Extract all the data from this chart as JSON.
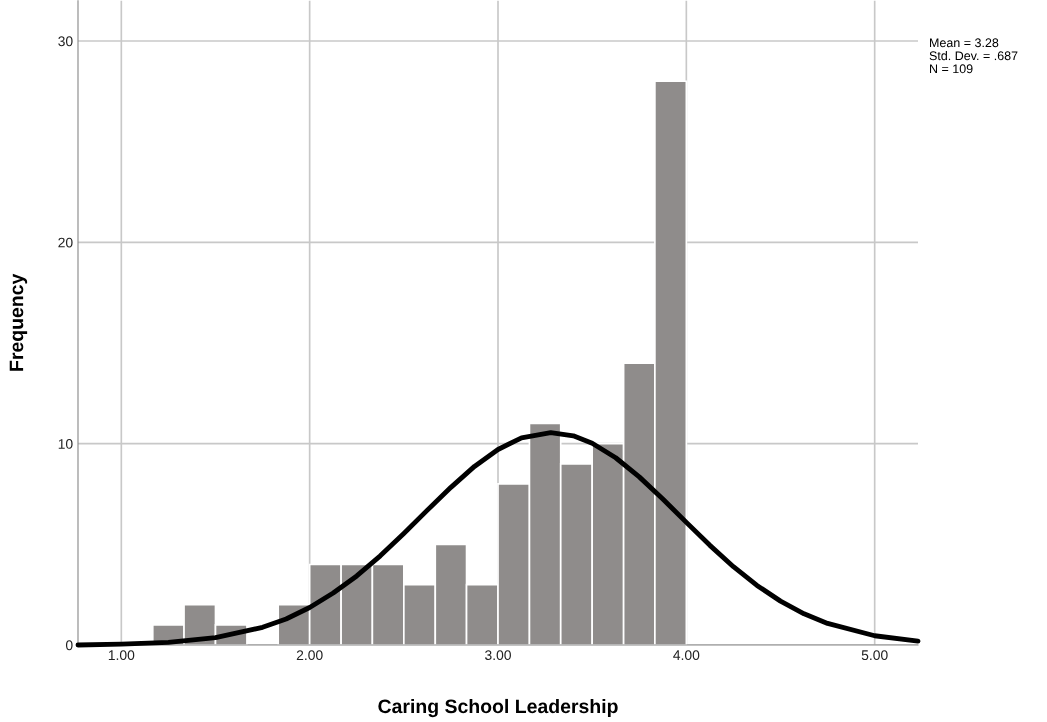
{
  "chart_data": {
    "type": "histogram",
    "xlabel": "Caring School Leadership",
    "ylabel": "Frequency",
    "bins": [
      1.167,
      1.333,
      1.5,
      1.667,
      1.833,
      2.0,
      2.167,
      2.333,
      2.5,
      2.667,
      2.833,
      3.0,
      3.167,
      3.333,
      3.5,
      3.667,
      3.833,
      4.0
    ],
    "values": [
      1,
      2,
      1,
      0,
      2,
      4,
      4,
      4,
      3,
      5,
      3,
      8,
      11,
      9,
      10,
      14,
      28
    ],
    "color": "#8f8c8b",
    "series": [
      {
        "type": "line",
        "color": "#000000",
        "x": [
          0.77,
          1.0,
          1.25,
          1.5,
          1.75,
          1.875,
          2.0,
          2.125,
          2.25,
          2.375,
          2.5,
          2.625,
          2.75,
          2.875,
          3.0,
          3.125,
          3.28,
          3.4,
          3.5,
          3.625,
          3.75,
          3.875,
          4.0,
          4.125,
          4.25,
          4.375,
          4.5,
          4.625,
          4.75,
          5.0,
          5.23
        ],
        "values": [
          0.0,
          0.04,
          0.13,
          0.37,
          0.88,
          1.29,
          1.86,
          2.58,
          3.43,
          4.43,
          5.54,
          6.7,
          7.83,
          8.87,
          9.71,
          10.29,
          10.55,
          10.39,
          10.02,
          9.3,
          8.35,
          7.25,
          6.09,
          4.95,
          3.89,
          2.96,
          2.18,
          1.55,
          1.07,
          0.46,
          0.19
        ]
      }
    ],
    "xlim": [
      0.77,
      5.23
    ],
    "ylim": [
      0,
      32
    ],
    "xticks": [
      {
        "value": 1,
        "label": "1.00"
      },
      {
        "value": 2,
        "label": "2.00"
      },
      {
        "value": 3,
        "label": "3.00"
      },
      {
        "value": 4,
        "label": "4.00"
      },
      {
        "value": 5,
        "label": "5.00"
      }
    ],
    "yticks": [
      0,
      10,
      20,
      30
    ],
    "grid": true,
    "annotations": [
      "Mean = 3.28",
      "Std. Dev. = .687",
      "N = 109"
    ]
  }
}
